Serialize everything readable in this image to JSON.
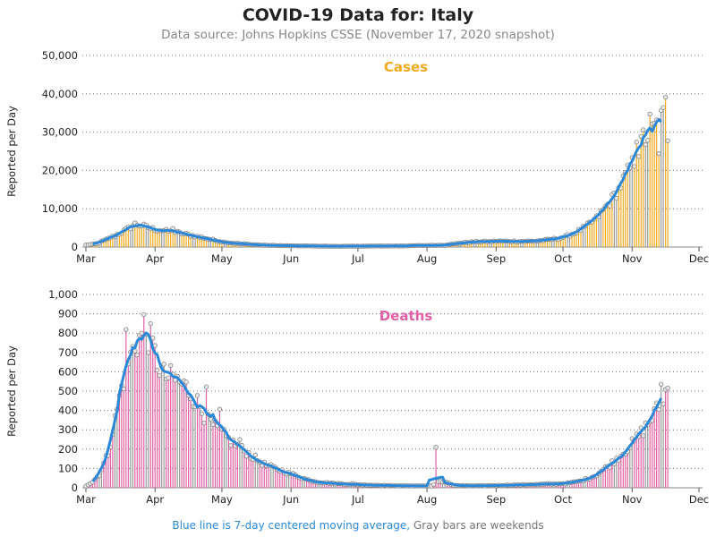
{
  "title": "COVID-19 Data for: Italy",
  "subtitle": "Data source: Johns Hopkins CSSE (November 17, 2020 snapshot)",
  "footnote": {
    "blue_text": "Blue line is 7-day centered moving average,",
    "gray_text": "Gray bars are weekends"
  },
  "colors": {
    "cases": "#f2a91e",
    "deaths": "#e05fa6",
    "moving_average": "#2b88d8",
    "weekend": "#999999"
  },
  "chart_data": [
    {
      "type": "bar",
      "name": "cases",
      "title": "Cases",
      "ylabel": "Reported per Day",
      "xlabel": "",
      "ylim": [
        0,
        50000
      ],
      "yticks": [
        0,
        10000,
        20000,
        30000,
        40000,
        50000
      ],
      "ytick_labels": [
        "0",
        "10,000",
        "20,000",
        "30,000",
        "40,000",
        "50,000"
      ],
      "xtick_labels": [
        "Mar",
        "Apr",
        "May",
        "Jun",
        "Jul",
        "Aug",
        "Sep",
        "Oct",
        "Nov",
        "Dec"
      ],
      "x_start": "2020-03-01",
      "x_end": "2020-12-01",
      "x_days": 275,
      "series_start_day": 0,
      "profile_points": [
        [
          0,
          500
        ],
        [
          5,
          900
        ],
        [
          10,
          2200
        ],
        [
          15,
          3500
        ],
        [
          20,
          5200
        ],
        [
          22,
          6000
        ],
        [
          26,
          5500
        ],
        [
          31,
          4600
        ],
        [
          36,
          4200
        ],
        [
          41,
          3800
        ],
        [
          46,
          3200
        ],
        [
          51,
          2600
        ],
        [
          56,
          2000
        ],
        [
          61,
          1400
        ],
        [
          66,
          1000
        ],
        [
          71,
          800
        ],
        [
          76,
          600
        ],
        [
          81,
          450
        ],
        [
          91,
          330
        ],
        [
          101,
          280
        ],
        [
          111,
          200
        ],
        [
          121,
          220
        ],
        [
          131,
          260
        ],
        [
          141,
          280
        ],
        [
          151,
          400
        ],
        [
          161,
          480
        ],
        [
          166,
          900
        ],
        [
          171,
          1200
        ],
        [
          176,
          1400
        ],
        [
          181,
          1450
        ],
        [
          186,
          1550
        ],
        [
          191,
          1500
        ],
        [
          196,
          1500
        ],
        [
          201,
          1550
        ],
        [
          206,
          1800
        ],
        [
          211,
          2200
        ],
        [
          214,
          2500
        ],
        [
          219,
          3600
        ],
        [
          224,
          5200
        ],
        [
          229,
          7500
        ],
        [
          234,
          11000
        ],
        [
          239,
          15000
        ],
        [
          242,
          18500
        ],
        [
          246,
          22500
        ],
        [
          249,
          26500
        ],
        [
          252,
          29000
        ],
        [
          255,
          31000
        ],
        [
          259,
          34000
        ],
        [
          262,
          35000
        ],
        [
          264,
          35000
        ],
        [
          265,
          34500
        ]
      ],
      "total_days": 262,
      "noise": 0.11,
      "spikes": [
        [
          39,
          0.22
        ],
        [
          247,
          0.15
        ],
        [
          250,
          0.12
        ],
        [
          253,
          0.17
        ],
        [
          257,
          -0.25
        ],
        [
          260,
          0.14
        ],
        [
          261,
          -0.2
        ]
      ]
    },
    {
      "type": "bar",
      "name": "deaths",
      "title": "Deaths",
      "ylabel": "Reported per Day",
      "xlabel": "",
      "ylim": [
        0,
        1000
      ],
      "yticks": [
        0,
        100,
        200,
        300,
        400,
        500,
        600,
        700,
        800,
        900,
        1000
      ],
      "ytick_labels": [
        "0",
        "100",
        "200",
        "300",
        "400",
        "500",
        "600",
        "700",
        "800",
        "900",
        "1,000"
      ],
      "xtick_labels": [
        "Mar",
        "Apr",
        "May",
        "Jun",
        "Jul",
        "Aug",
        "Sep",
        "Oct",
        "Nov",
        "Dec"
      ],
      "x_start": "2020-03-01",
      "x_end": "2020-12-01",
      "x_days": 275,
      "series_start_day": 0,
      "profile_points": [
        [
          0,
          10
        ],
        [
          3,
          30
        ],
        [
          6,
          70
        ],
        [
          10,
          180
        ],
        [
          13,
          350
        ],
        [
          16,
          520
        ],
        [
          19,
          650
        ],
        [
          22,
          740
        ],
        [
          25,
          790
        ],
        [
          27,
          810
        ],
        [
          29,
          760
        ],
        [
          32,
          650
        ],
        [
          35,
          580
        ],
        [
          40,
          560
        ],
        [
          45,
          520
        ],
        [
          50,
          440
        ],
        [
          55,
          340
        ],
        [
          60,
          290
        ],
        [
          65,
          240
        ],
        [
          70,
          200
        ],
        [
          75,
          160
        ],
        [
          80,
          120
        ],
        [
          85,
          100
        ],
        [
          90,
          80
        ],
        [
          95,
          60
        ],
        [
          100,
          40
        ],
        [
          105,
          28
        ],
        [
          115,
          20
        ],
        [
          125,
          15
        ],
        [
          135,
          12
        ],
        [
          145,
          10
        ],
        [
          155,
          10
        ],
        [
          158,
          30
        ],
        [
          162,
          30
        ],
        [
          165,
          12
        ],
        [
          175,
          10
        ],
        [
          185,
          12
        ],
        [
          195,
          15
        ],
        [
          205,
          18
        ],
        [
          215,
          22
        ],
        [
          222,
          35
        ],
        [
          228,
          60
        ],
        [
          234,
          110
        ],
        [
          240,
          170
        ],
        [
          246,
          240
        ],
        [
          252,
          330
        ],
        [
          256,
          400
        ],
        [
          259,
          470
        ],
        [
          262,
          540
        ],
        [
          264,
          580
        ],
        [
          265,
          570
        ]
      ],
      "total_days": 262,
      "noise": 0.12,
      "spikes": [
        [
          18,
          0.35
        ],
        [
          26,
          0.12
        ],
        [
          54,
          0.45
        ],
        [
          60,
          0.4
        ],
        [
          69,
          0.2
        ],
        [
          157,
          8.0
        ],
        [
          258,
          0.2
        ],
        [
          262,
          0.35
        ]
      ]
    }
  ]
}
